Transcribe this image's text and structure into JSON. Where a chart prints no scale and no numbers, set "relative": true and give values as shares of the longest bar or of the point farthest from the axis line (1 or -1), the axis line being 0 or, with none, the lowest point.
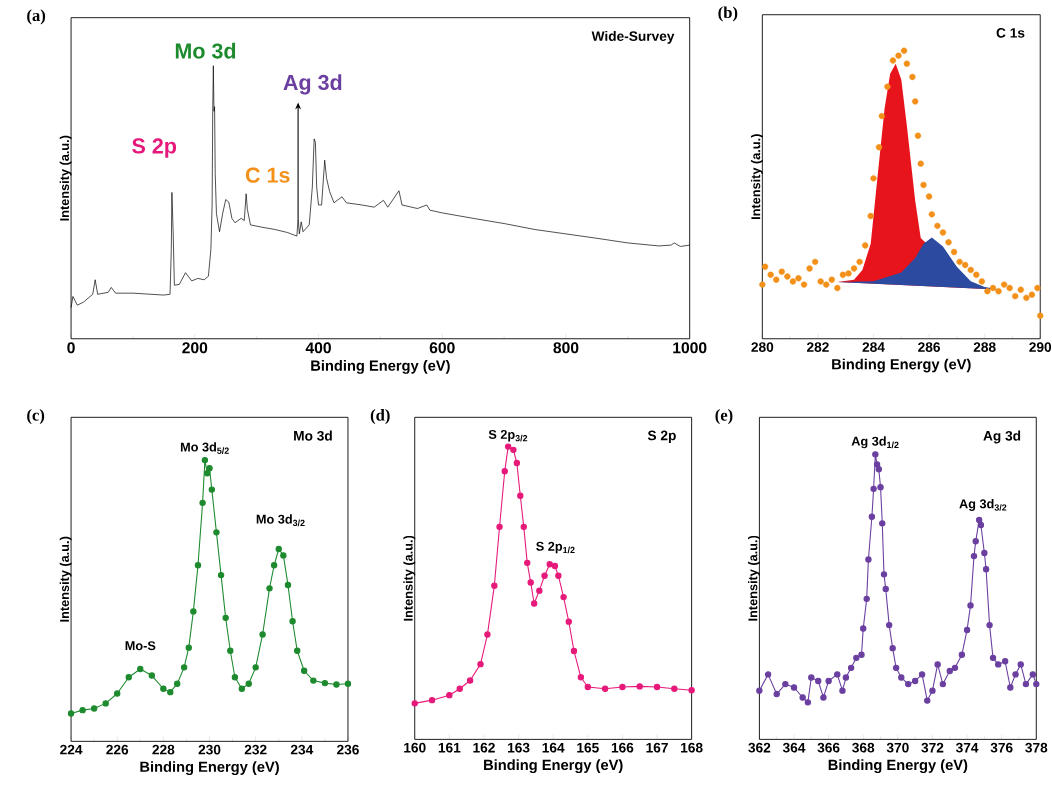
{
  "chart_data": [
    {
      "type": "line",
      "title": "Wide-Survey",
      "xlabel": "Binding Energy (eV)",
      "ylabel": "Intensity (a.u.)",
      "relative": true,
      "annotations": [
        "(a)",
        {
          "text": "Mo 3d",
          "x": 230,
          "y": 1.0
        },
        {
          "text": "S 2p",
          "x": 163,
          "y": 0.536
        },
        {
          "text": "C 1s",
          "x": 283,
          "y": 0.531
        },
        {
          "text": "Ag 3d",
          "x": 367,
          "y": 0.441
        }
      ],
      "xlim": [
        0,
        1000
      ],
      "xticks": [
        0,
        {
          "value": 100,
          "label": null
        },
        200,
        {
          "value": 300,
          "label": null
        },
        400,
        {
          "value": 500,
          "label": null
        },
        600,
        {
          "value": 700,
          "label": null
        },
        800,
        {
          "value": 900,
          "label": null
        },
        1000
      ],
      "x": [
        0,
        3,
        10,
        20,
        35,
        39,
        43,
        60,
        65,
        72,
        100,
        150,
        160,
        162,
        163,
        165,
        167,
        175,
        185,
        195,
        205,
        215,
        222,
        226,
        228,
        229,
        230,
        231,
        232,
        233,
        235,
        240,
        245,
        250,
        255,
        260,
        265,
        275,
        280,
        283,
        285,
        290,
        310,
        330,
        350,
        365,
        367,
        369,
        372,
        375,
        385,
        390,
        393,
        395,
        397,
        400,
        405,
        410,
        413,
        418,
        425,
        438,
        445,
        470,
        490,
        505,
        512,
        530,
        535,
        560,
        575,
        580,
        600,
        650,
        700,
        750,
        800,
        850,
        900,
        950,
        970,
        975,
        985,
        1000
      ],
      "series": [
        {
          "color": "#000000",
          "values": [
            0.114,
            0.155,
            0.123,
            0.134,
            0.163,
            0.216,
            0.163,
            0.17,
            0.188,
            0.167,
            0.167,
            0.16,
            0.163,
            0.327,
            0.536,
            0.392,
            0.196,
            0.199,
            0.242,
            0.212,
            0.221,
            0.216,
            0.229,
            0.327,
            0.49,
            0.833,
            1.0,
            0.833,
            0.85,
            0.605,
            0.458,
            0.392,
            0.458,
            0.51,
            0.5,
            0.441,
            0.425,
            0.441,
            0.433,
            0.531,
            0.474,
            0.417,
            0.408,
            0.4,
            0.389,
            0.376,
            0.441,
            0.384,
            0.428,
            0.392,
            0.417,
            0.556,
            0.732,
            0.719,
            0.556,
            0.49,
            0.49,
            0.654,
            0.588,
            0.539,
            0.498,
            0.52,
            0.498,
            0.49,
            0.482,
            0.507,
            0.482,
            0.542,
            0.49,
            0.477,
            0.49,
            0.471,
            0.461,
            0.441,
            0.422,
            0.4,
            0.384,
            0.368,
            0.351,
            0.34,
            0.343,
            0.351,
            0.338,
            0.343
          ]
        }
      ]
    },
    {
      "type": "scatter",
      "title": "C 1s",
      "xlabel": "Binding Energy (eV)",
      "ylabel": "Intensity (a.u.)",
      "relative": true,
      "annotations": [
        "(b)"
      ],
      "xlim": [
        280,
        290
      ],
      "xticks": [
        280,
        {
          "value": 281,
          "label": null
        },
        282,
        {
          "value": 283,
          "label": null
        },
        284,
        {
          "value": 285,
          "label": null
        },
        286,
        {
          "value": 287,
          "label": null
        },
        288,
        {
          "value": 289,
          "label": null
        },
        290
      ],
      "series": [
        {
          "type": "area",
          "color": "#e8141c",
          "x": [
            282.7,
            283.3,
            283.6,
            283.9,
            284.1,
            284.4,
            284.6,
            284.8,
            285.0,
            285.2,
            285.5,
            285.7,
            286.2,
            286.8,
            287.5,
            288.6
          ],
          "values": [
            0.197,
            0.205,
            0.239,
            0.33,
            0.52,
            0.8,
            0.92,
            0.955,
            0.9,
            0.74,
            0.48,
            0.35,
            null,
            null,
            0.183,
            0.17
          ]
        },
        {
          "type": "area",
          "color": "#2b4aa0",
          "x": [
            282.7,
            284.0,
            285.0,
            285.5,
            285.8,
            286.1,
            286.5,
            287.0,
            287.5,
            288.0,
            288.6
          ],
          "values": [
            0.197,
            0.2,
            0.23,
            0.28,
            0.33,
            0.352,
            0.32,
            0.25,
            0.2,
            0.18,
            0.17
          ]
        },
        {
          "color": "#f39019",
          "marker": "circle",
          "x": [
            280.0,
            280.1,
            280.3,
            280.5,
            280.7,
            280.9,
            281.1,
            281.3,
            281.5,
            281.7,
            281.9,
            282.1,
            282.3,
            282.5,
            282.7,
            282.9,
            283.1,
            283.3,
            283.5,
            283.7,
            283.9,
            284.0,
            284.2,
            284.3,
            284.5,
            284.7,
            284.9,
            285.1,
            285.2,
            285.4,
            285.5,
            285.6,
            285.7,
            285.8,
            286.0,
            286.1,
            286.3,
            286.5,
            286.7,
            286.9,
            287.1,
            287.3,
            287.5,
            287.7,
            287.9,
            288.1,
            288.3,
            288.5,
            288.7,
            288.9,
            289.1,
            289.3,
            289.5,
            289.7,
            289.9,
            290.0
          ],
          "values": [
            0.188,
            0.25,
            0.222,
            0.205,
            0.233,
            0.216,
            0.199,
            0.21,
            0.188,
            0.244,
            0.267,
            0.199,
            0.188,
            0.205,
            0.176,
            0.222,
            0.227,
            0.244,
            0.267,
            0.324,
            0.426,
            0.557,
            0.665,
            0.773,
            0.875,
            0.966,
            0.983,
            1.0,
            0.955,
            0.909,
            0.824,
            0.705,
            0.608,
            0.534,
            0.494,
            0.432,
            0.392,
            0.369,
            0.335,
            0.301,
            0.267,
            0.256,
            0.239,
            0.222,
            0.199,
            0.165,
            0.176,
            0.165,
            0.188,
            0.176,
            0.148,
            0.17,
            0.142,
            0.153,
            0.176,
            0.08
          ]
        }
      ]
    },
    {
      "type": "line",
      "title": "Mo 3d",
      "xlabel": "Binding Energy (eV)",
      "ylabel": "Intensity (a.u.)",
      "relative": true,
      "marker": "circle",
      "annotations": [
        "(c)",
        {
          "text": "Mo 3d$_{5/2}$",
          "x": 229.8,
          "y": 1.0
        },
        {
          "text": "Mo 3d$_{3/2}$",
          "x": 233.0,
          "y": 0.684
        },
        {
          "text": "Mo-S",
          "x": 227.0,
          "y": 0.257
        }
      ],
      "xlim": [
        224,
        236
      ],
      "xticks": [
        224,
        {
          "value": 225,
          "label": null
        },
        226,
        {
          "value": 227,
          "label": null
        },
        228,
        {
          "value": 229,
          "label": null
        },
        230,
        {
          "value": 231,
          "label": null
        },
        232,
        {
          "value": 233,
          "label": null
        },
        234,
        {
          "value": 235,
          "label": null
        },
        236
      ],
      "x": [
        224.0,
        224.5,
        225.0,
        225.5,
        226.0,
        226.5,
        227.0,
        227.5,
        228.0,
        228.3,
        228.6,
        228.9,
        229.1,
        229.3,
        229.5,
        229.7,
        229.8,
        229.9,
        230.0,
        230.1,
        230.3,
        230.5,
        230.7,
        230.9,
        231.1,
        231.4,
        231.7,
        232.0,
        232.3,
        232.6,
        232.8,
        233.0,
        233.2,
        233.4,
        233.6,
        233.8,
        234.1,
        234.5,
        235.0,
        235.5,
        236.0
      ],
      "series": [
        {
          "color": "#1e8a2e",
          "values": [
            0.099,
            0.111,
            0.117,
            0.135,
            0.17,
            0.228,
            0.257,
            0.234,
            0.187,
            0.175,
            0.205,
            0.263,
            0.333,
            0.462,
            0.626,
            0.848,
            1.0,
            0.953,
            0.971,
            0.895,
            0.743,
            0.591,
            0.439,
            0.322,
            0.228,
            0.187,
            0.205,
            0.263,
            0.38,
            0.544,
            0.626,
            0.684,
            0.661,
            0.556,
            0.427,
            0.322,
            0.251,
            0.216,
            0.207,
            0.202,
            0.205
          ]
        }
      ]
    },
    {
      "type": "line",
      "title": "S 2p",
      "xlabel": "Binding Energy (eV)",
      "ylabel": "Intensity (a.u.)",
      "relative": true,
      "marker": "circle",
      "annotations": [
        "(d)",
        {
          "text": "S 2p$_{3/2}$",
          "x": 162.7,
          "y": 1.0
        },
        {
          "text": "S 2p$_{1/2}$",
          "x": 163.9,
          "y": 0.598
        }
      ],
      "xlim": [
        160,
        168
      ],
      "xticks": [
        160,
        161,
        162,
        163,
        164,
        165,
        166,
        167,
        168
      ],
      "x": [
        160.0,
        160.5,
        161.0,
        161.3,
        161.6,
        161.9,
        162.1,
        162.3,
        162.45,
        162.6,
        162.7,
        162.85,
        162.95,
        163.05,
        163.15,
        163.25,
        163.35,
        163.45,
        163.6,
        163.75,
        163.9,
        164.05,
        164.15,
        164.3,
        164.45,
        164.6,
        164.8,
        165.0,
        165.5,
        166.0,
        166.5,
        167.0,
        167.5,
        168.0
      ],
      "series": [
        {
          "color": "#e6197a",
          "values": [
            0.123,
            0.134,
            0.151,
            0.173,
            0.201,
            0.257,
            0.358,
            0.525,
            0.726,
            0.916,
            1.0,
            0.989,
            0.944,
            0.832,
            0.726,
            0.603,
            0.536,
            0.464,
            0.508,
            0.559,
            0.598,
            0.592,
            0.559,
            0.486,
            0.402,
            0.302,
            0.212,
            0.179,
            0.173,
            0.179,
            0.181,
            0.179,
            0.173,
            0.168
          ]
        }
      ]
    },
    {
      "type": "line",
      "title": "Ag 3d",
      "xlabel": "Binding Energy (eV)",
      "ylabel": "Intensity (a.u.)",
      "relative": true,
      "marker": "circle",
      "annotations": [
        "(e)",
        {
          "text": "Ag 3d$_{1/2}$",
          "x": 368.7,
          "y": 1.0
        },
        {
          "text": "Ag 3d$_{3/2}$",
          "x": 374.7,
          "y": 0.77
        }
      ],
      "xlim": [
        362,
        378
      ],
      "xticks": [
        362,
        {
          "value": 363,
          "label": null
        },
        364,
        {
          "value": 365,
          "label": null
        },
        366,
        {
          "value": 367,
          "label": null
        },
        368,
        {
          "value": 369,
          "label": null
        },
        370,
        {
          "value": 371,
          "label": null
        },
        372,
        {
          "value": 373,
          "label": null
        },
        374,
        {
          "value": 375,
          "label": null
        },
        376,
        {
          "value": 377,
          "label": null
        },
        378
      ],
      "x": [
        362.0,
        362.5,
        363.0,
        363.5,
        364.0,
        364.5,
        364.8,
        365.0,
        365.4,
        365.7,
        366.0,
        366.5,
        366.8,
        367.0,
        367.3,
        367.6,
        367.9,
        368.0,
        368.2,
        368.3,
        368.5,
        368.6,
        368.7,
        368.8,
        368.9,
        369.0,
        369.1,
        369.2,
        369.3,
        369.5,
        369.7,
        369.9,
        370.2,
        370.6,
        371.0,
        371.4,
        371.7,
        372.0,
        372.3,
        372.6,
        373.0,
        373.3,
        373.7,
        374.0,
        374.2,
        374.4,
        374.5,
        374.7,
        374.8,
        375.0,
        375.1,
        375.3,
        375.5,
        375.8,
        376.2,
        376.5,
        376.8,
        377.1,
        377.4,
        377.8,
        378.0
      ],
      "series": [
        {
          "color": "#6a3fa0",
          "values": [
            0.171,
            0.228,
            0.159,
            0.194,
            0.182,
            0.147,
            0.13,
            0.217,
            0.205,
            0.147,
            0.205,
            0.228,
            0.171,
            0.217,
            0.251,
            0.286,
            0.297,
            0.389,
            0.493,
            0.631,
            0.781,
            0.879,
            1.0,
            0.965,
            0.948,
            0.885,
            0.758,
            0.579,
            0.528,
            0.401,
            0.32,
            0.251,
            0.217,
            0.194,
            0.205,
            0.228,
            0.136,
            0.171,
            0.263,
            0.194,
            0.24,
            0.251,
            0.297,
            0.384,
            0.47,
            0.643,
            0.695,
            0.77,
            0.752,
            0.654,
            0.597,
            0.401,
            0.286,
            0.263,
            0.274,
            0.182,
            0.228,
            0.263,
            0.194,
            0.228,
            0.194
          ]
        }
      ]
    }
  ]
}
